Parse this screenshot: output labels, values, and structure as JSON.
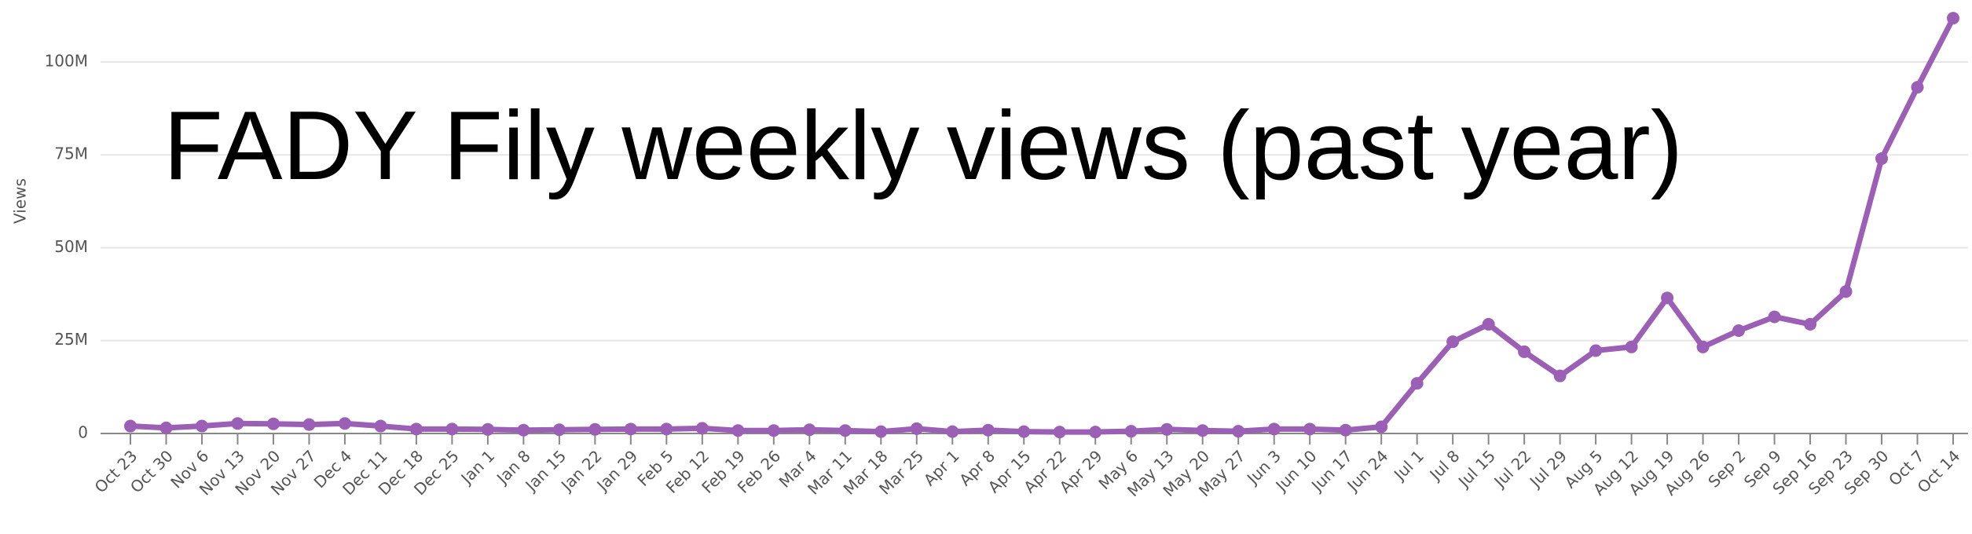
{
  "chart_data": {
    "type": "line",
    "title": "FADY Fily weekly views (past year)",
    "y_label": "Views",
    "categories": [
      "Oct 23",
      "Oct 30",
      "Nov 6",
      "Nov 13",
      "Nov 20",
      "Nov 27",
      "Dec 4",
      "Dec 11",
      "Dec 18",
      "Dec 25",
      "Jan 1",
      "Jan 8",
      "Jan 15",
      "Jan 22",
      "Jan 29",
      "Feb 5",
      "Feb 12",
      "Feb 19",
      "Feb 26",
      "Mar 4",
      "Mar 11",
      "Mar 18",
      "Mar 25",
      "Apr 1",
      "Apr 8",
      "Apr 15",
      "Apr 22",
      "Apr 29",
      "May 6",
      "May 13",
      "May 20",
      "May 27",
      "Jun 3",
      "Jun 10",
      "Jun 17",
      "Jun 24",
      "Jul 1",
      "Jul 8",
      "Jul 15",
      "Jul 22",
      "Jul 29",
      "Aug 5",
      "Aug 12",
      "Aug 19",
      "Aug 26",
      "Sep 2",
      "Sep 9",
      "Sep 16",
      "Sep 23",
      "Sep 30",
      "Oct 7",
      "Oct 14"
    ],
    "values": [
      2000000,
      1500000,
      2000000,
      2700000,
      2600000,
      2400000,
      2700000,
      2000000,
      1200000,
      1200000,
      1100000,
      900000,
      1000000,
      1100000,
      1200000,
      1200000,
      1400000,
      800000,
      800000,
      1000000,
      800000,
      500000,
      1300000,
      500000,
      900000,
      500000,
      400000,
      400000,
      600000,
      1100000,
      800000,
      600000,
      1200000,
      1200000,
      900000,
      1800000,
      13500000,
      24700000,
      29400000,
      22000000,
      15500000,
      22300000,
      23300000,
      36500000,
      23300000,
      27700000,
      31400000,
      29400000,
      38200000,
      74000000,
      93200000,
      111800000
    ],
    "color": "#9b5fb5",
    "ylim": [
      0,
      115000000
    ],
    "yticks": [
      {
        "value": 0,
        "label": "0"
      },
      {
        "value": 25000000,
        "label": "25M"
      },
      {
        "value": 50000000,
        "label": "50M"
      },
      {
        "value": 75000000,
        "label": "75M"
      },
      {
        "value": 100000000,
        "label": "100M"
      }
    ],
    "grid": true
  }
}
